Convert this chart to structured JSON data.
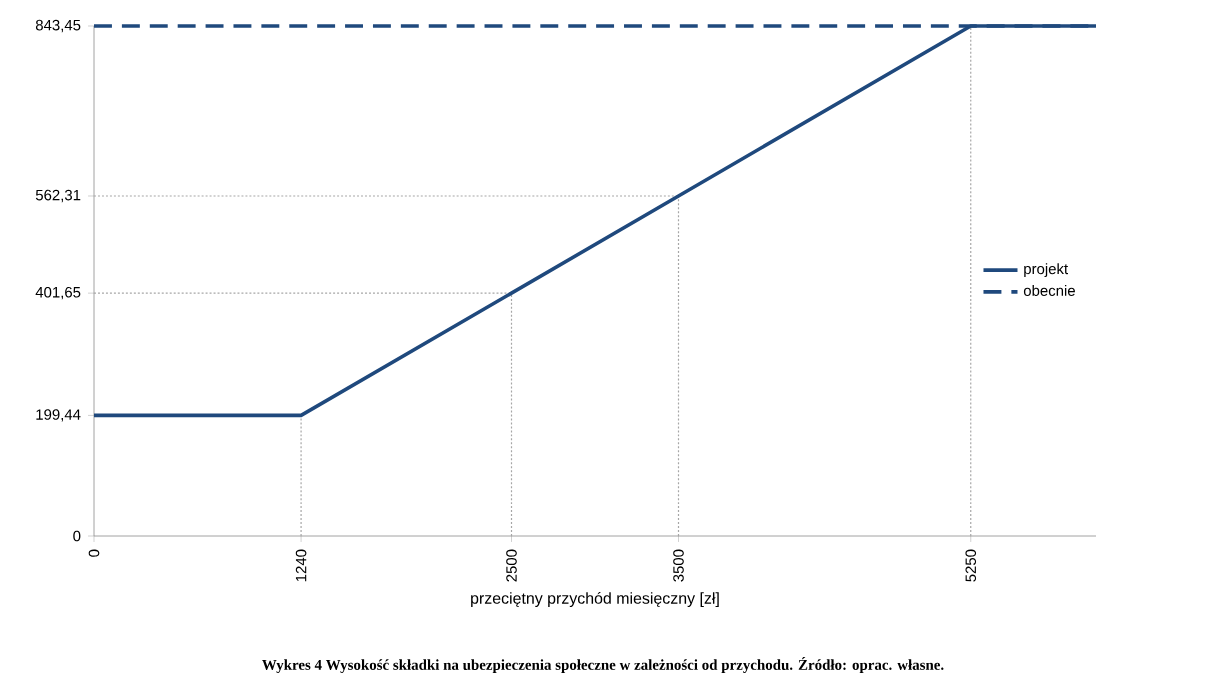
{
  "chart_data": {
    "type": "line",
    "xlabel": "przeciętny przychód miesięczny [zł]",
    "annotations": [
      "Wykres 4 Wysokość składki na ubezpieczenia społeczne w zależności od przychodu. Źródło: oprac. własne."
    ],
    "series": [
      {
        "name": "projekt",
        "color": "#1f497d",
        "line_style": "solid",
        "x": [
          0,
          1240,
          2500,
          3500,
          5250,
          6000
        ],
        "values": [
          199.44,
          199.44,
          401.65,
          562.31,
          843.45,
          843.45
        ]
      },
      {
        "name": "obecnie",
        "color": "#1f497d",
        "line_style": "dashed",
        "x": [
          0,
          6000
        ],
        "values": [
          843.45,
          843.45
        ]
      }
    ],
    "xlim": [
      0,
      6000
    ],
    "ylim": [
      0,
      843.45
    ],
    "xticks": [
      0,
      1240,
      2500,
      3500,
      5250
    ],
    "yticks": [
      0,
      {
        "value": 199.44,
        "label": "199,44"
      },
      {
        "value": 401.65,
        "label": "401,65"
      },
      {
        "value": 562.31,
        "label": "562,31"
      },
      {
        "value": 843.45,
        "label": "843,45"
      }
    ],
    "ref_lines": [
      {
        "axis": "x",
        "value": 1240,
        "color": "#a6a6a6",
        "line_style": "dotted"
      },
      {
        "axis": "x",
        "value": 2500,
        "color": "#a6a6a6",
        "line_style": "dotted"
      },
      {
        "axis": "x",
        "value": 3500,
        "color": "#a6a6a6",
        "line_style": "dotted"
      },
      {
        "axis": "x",
        "value": 5250,
        "color": "#a6a6a6",
        "line_style": "dotted"
      },
      {
        "axis": "y",
        "value": 401.65,
        "color": "#a6a6a6",
        "line_style": "dotted"
      },
      {
        "axis": "y",
        "value": 562.31,
        "color": "#a6a6a6",
        "line_style": "dotted"
      }
    ],
    "legend": "right",
    "grid": false,
    "marker": "none"
  }
}
